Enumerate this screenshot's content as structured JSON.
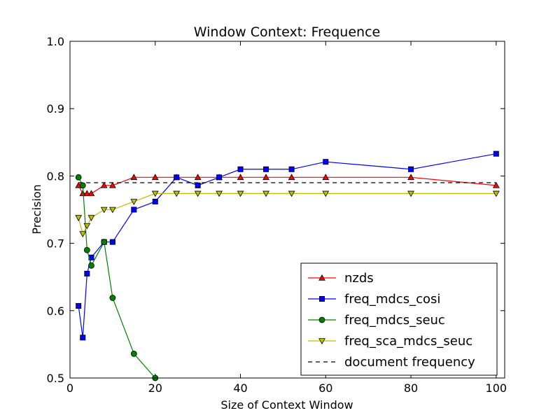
{
  "chart_data": {
    "type": "line",
    "title": "Window Context: Frequence",
    "xlabel": "Size of Context Window",
    "ylabel": "Precision",
    "xlim": [
      0,
      102
    ],
    "ylim": [
      0.5,
      1.0
    ],
    "xticks": [
      0,
      20,
      40,
      60,
      80,
      100
    ],
    "yticks": [
      0.5,
      0.6,
      0.7,
      0.8,
      0.9,
      1.0
    ],
    "xtick_labels": [
      "0",
      "20",
      "40",
      "60",
      "80",
      "100"
    ],
    "ytick_labels": [
      "0.5",
      "0.6",
      "0.7",
      "0.8",
      "0.9",
      "1.0"
    ],
    "grid": false,
    "legend_position": "bottom-right",
    "series": [
      {
        "name": "nzds",
        "color": "#ff0000",
        "marker": "triangle-up",
        "x": [
          2,
          3,
          4,
          5,
          8,
          10,
          15,
          20,
          25,
          30,
          35,
          40,
          46,
          52,
          60,
          80,
          100
        ],
        "y": [
          0.786,
          0.774,
          0.774,
          0.774,
          0.786,
          0.786,
          0.798,
          0.798,
          0.798,
          0.798,
          0.798,
          0.798,
          0.798,
          0.798,
          0.798,
          0.798,
          0.786
        ]
      },
      {
        "name": "freq_mdcs_cosi",
        "color": "#0000ff",
        "marker": "square",
        "x": [
          2,
          3,
          4,
          5,
          8,
          10,
          15,
          20,
          25,
          30,
          35,
          40,
          46,
          52,
          60,
          80,
          100
        ],
        "y": [
          0.607,
          0.56,
          0.655,
          0.679,
          0.702,
          0.702,
          0.75,
          0.762,
          0.798,
          0.786,
          0.798,
          0.81,
          0.81,
          0.81,
          0.821,
          0.81,
          0.833
        ]
      },
      {
        "name": "freq_mdcs_seuc",
        "color": "#008000",
        "marker": "circle",
        "x": [
          2,
          3,
          4,
          5,
          8,
          10,
          15,
          20
        ],
        "y": [
          0.798,
          0.786,
          0.69,
          0.667,
          0.702,
          0.619,
          0.536,
          0.5
        ]
      },
      {
        "name": "freq_sca_mdcs_seuc",
        "color": "#bfbf00",
        "marker": "triangle-down",
        "x": [
          2,
          3,
          4,
          5,
          8,
          10,
          15,
          20,
          25,
          30,
          35,
          40,
          46,
          52,
          60,
          80,
          100
        ],
        "y": [
          0.738,
          0.714,
          0.726,
          0.738,
          0.75,
          0.75,
          0.762,
          0.774,
          0.774,
          0.774,
          0.774,
          0.774,
          0.774,
          0.774,
          0.774,
          0.774,
          0.774
        ]
      },
      {
        "name": "document frequency",
        "color": "#000000",
        "marker": "none",
        "dashed": true,
        "x": [
          2,
          100
        ],
        "y": [
          0.79,
          0.79
        ]
      }
    ]
  }
}
